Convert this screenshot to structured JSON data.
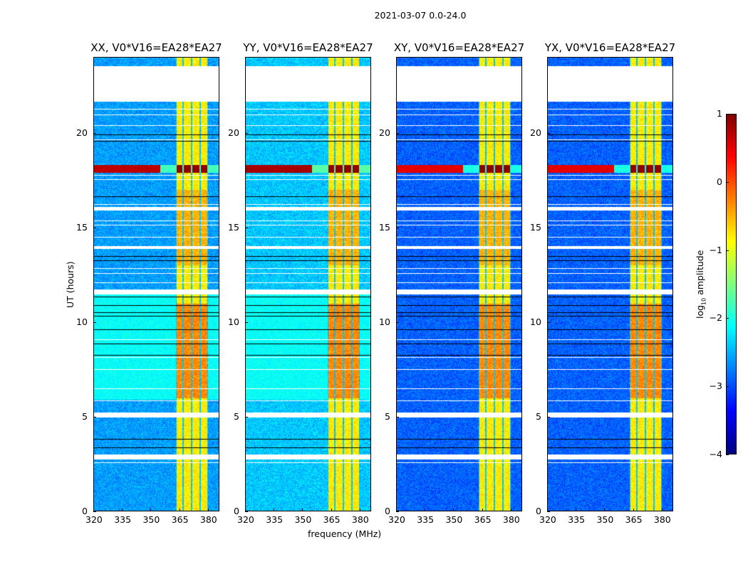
{
  "figure": {
    "suptitle": "2021-03-07 0.0-24.0"
  },
  "chart_data": {
    "type": "heatmap",
    "title": "2021-03-07 0.0-24.0",
    "xlabel": "frequency (MHz)",
    "ylabel": "UT (hours)",
    "xlim": [
      320,
      386
    ],
    "ylim": [
      0,
      24
    ],
    "xticks": [
      "320",
      "335",
      "350",
      "365",
      "380"
    ],
    "xtick_values": [
      320,
      335,
      350,
      365,
      380
    ],
    "yticks": [
      "0",
      "5",
      "10",
      "15",
      "20"
    ],
    "ytick_values": [
      0,
      5,
      10,
      15,
      20
    ],
    "colormap": "jet",
    "colorbar": {
      "label": "log10 amplitude",
      "label_main": "log",
      "label_sub": "10",
      "label_rest": " amplitude",
      "range": [
        -4,
        1
      ],
      "ticks": [
        "1",
        "0",
        "−1",
        "−2",
        "−3",
        "−4"
      ],
      "tick_values": [
        1,
        0,
        -1,
        -2,
        -3,
        -4
      ]
    },
    "panels": [
      {
        "name": "XX",
        "title": "XX, V0*V16=EA28*EA27",
        "show_ylabel": true,
        "show_xlabel": false,
        "base_level_low_band": -2.6,
        "flare_level": 0.8
      },
      {
        "name": "YY",
        "title": "YY, V0*V16=EA28*EA27",
        "show_ylabel": false,
        "show_xlabel": true,
        "base_level_low_band": -2.4,
        "flare_level": 0.9
      },
      {
        "name": "XY",
        "title": "XY, V0*V16=EA28*EA27",
        "show_ylabel": false,
        "show_xlabel": false,
        "base_level_low_band": -2.9,
        "flare_level": 0.6
      },
      {
        "name": "YX",
        "title": "YX, V0*V16=EA28*EA27",
        "show_ylabel": false,
        "show_xlabel": false,
        "base_level_low_band": -2.9,
        "flare_level": 0.6
      }
    ],
    "features": {
      "rfi_bands_mhz": [
        [
          363.5,
          366.5
        ],
        [
          367,
          371
        ],
        [
          371.5,
          375.5
        ],
        [
          376,
          379.5
        ]
      ],
      "strong_band_mhz": [
        363,
        380
      ],
      "flare_hours": [
        17.9,
        18.3
      ],
      "blank_hours": [
        [
          21.7,
          23.5
        ],
        [
          11.5,
          11.7
        ],
        [
          5.0,
          5.2
        ],
        [
          2.8,
          3.0
        ],
        [
          15.95,
          16.05
        ],
        [
          13.9,
          14.0
        ]
      ],
      "quiet_cyan_hours": [
        5.9,
        11.5
      ]
    }
  }
}
